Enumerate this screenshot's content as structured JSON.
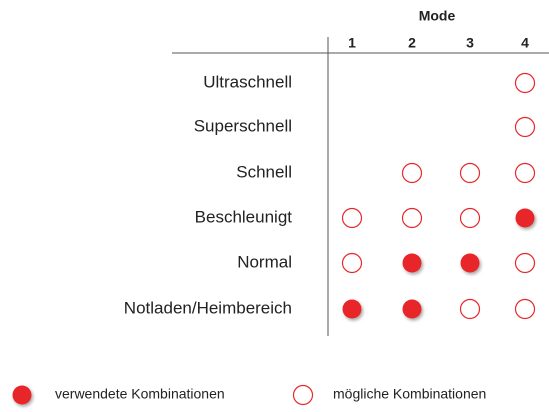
{
  "header": "Mode",
  "columns": [
    "1",
    "2",
    "3",
    "4"
  ],
  "rows": [
    {
      "label": "Ultraschnell",
      "cells": [
        null,
        null,
        null,
        "possible"
      ]
    },
    {
      "label": "Superschnell",
      "cells": [
        null,
        null,
        null,
        "possible"
      ]
    },
    {
      "label": "Schnell",
      "cells": [
        null,
        "possible",
        "possible",
        "possible"
      ]
    },
    {
      "label": "Beschleunigt",
      "cells": [
        "possible",
        "possible",
        "possible",
        "used"
      ]
    },
    {
      "label": "Normal",
      "cells": [
        "possible",
        "used",
        "used",
        "possible"
      ]
    },
    {
      "label": "Notladen/Heimbereich",
      "cells": [
        "used",
        "used",
        "possible",
        "possible"
      ]
    }
  ],
  "color": "#e8272a",
  "legend": [
    {
      "kind": "used",
      "label": "verwendete Kombinationen"
    },
    {
      "kind": "possible",
      "label": "mögliche Kombinationen"
    }
  ]
}
